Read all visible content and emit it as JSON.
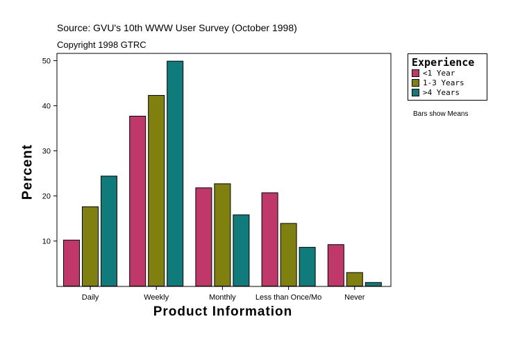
{
  "header": {
    "source": "Source: GVU's 10th WWW User Survey (October 1998)",
    "copyright": "Copyright 1998 GTRC"
  },
  "note": "Bars show Means",
  "chart_data": {
    "type": "bar",
    "title": "",
    "xlabel": "Product Information",
    "ylabel": "Percent",
    "categories": [
      "Daily",
      "Weekly",
      "Monthly",
      "Less than Once/Mo",
      "Never"
    ],
    "yticks": [
      10,
      20,
      30,
      40,
      50
    ],
    "ylim": [
      0,
      50
    ],
    "legend": {
      "title": "Experience",
      "position": "top-right"
    },
    "series": [
      {
        "name": "<1 Year",
        "color": "#c0386a",
        "values": [
          10.2,
          37.7,
          21.8,
          20.7,
          9.2
        ]
      },
      {
        "name": "1-3 Years",
        "color": "#808010",
        "values": [
          17.6,
          42.3,
          22.7,
          13.9,
          3.0
        ]
      },
      {
        "name": ">4 Years",
        "color": "#0f7b7b",
        "values": [
          24.4,
          49.9,
          15.8,
          8.6,
          0.8
        ]
      }
    ]
  }
}
